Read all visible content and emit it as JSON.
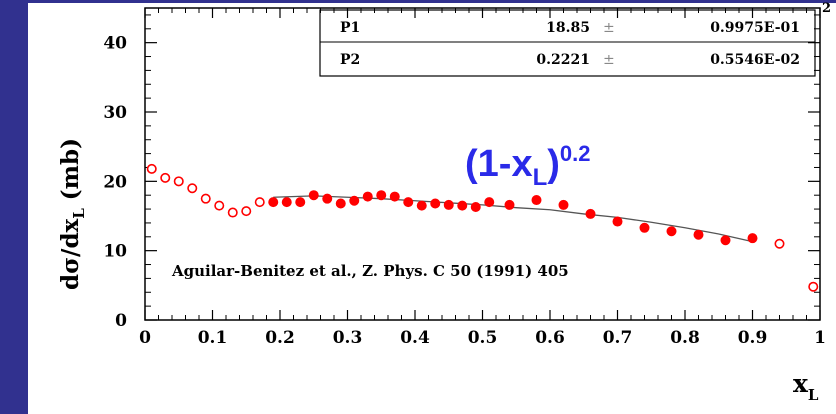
{
  "chart_data": {
    "type": "scatter",
    "xlabel_main": "x",
    "xlabel_sub": "L",
    "ylabel_main": "dσ/dx",
    "ylabel_sub": "L",
    "ylabel_unit": "(mb)",
    "xlim": [
      0,
      1
    ],
    "ylim": [
      0,
      45
    ],
    "x_ticks": [
      0,
      0.1,
      0.2,
      0.3,
      0.4,
      0.5,
      0.6,
      0.7,
      0.8,
      0.9,
      1
    ],
    "x_tick_labels": [
      "0",
      "0.1",
      "0.2",
      "0.3",
      "0.4",
      "0.5",
      "0.6",
      "0.7",
      "0.8",
      "0.9",
      "1"
    ],
    "y_ticks": [
      0,
      10,
      20,
      30,
      40
    ],
    "y_tick_labels": [
      "0",
      "10",
      "20",
      "30",
      "40"
    ],
    "grid": false,
    "series": [
      {
        "marker": "open-circle",
        "color": "#ff0000",
        "x": [
          0.01,
          0.03,
          0.05,
          0.07,
          0.09,
          0.11,
          0.13,
          0.15,
          0.17,
          0.94,
          0.99
        ],
        "y": [
          21.8,
          20.5,
          20.0,
          19.0,
          17.5,
          16.5,
          15.5,
          15.7,
          17.0,
          11.0,
          4.8
        ]
      },
      {
        "marker": "filled-circle",
        "color": "#ff0000",
        "x": [
          0.19,
          0.21,
          0.23,
          0.25,
          0.27,
          0.29,
          0.31,
          0.33,
          0.35,
          0.37,
          0.39,
          0.41,
          0.43,
          0.45,
          0.47,
          0.49,
          0.51,
          0.54,
          0.58,
          0.62,
          0.66,
          0.7,
          0.74,
          0.78,
          0.82,
          0.86,
          0.9
        ],
        "y": [
          17.0,
          17.0,
          17.0,
          18.0,
          17.5,
          16.8,
          17.2,
          17.8,
          18.0,
          17.8,
          17.0,
          16.5,
          16.8,
          16.6,
          16.5,
          16.3,
          17.0,
          16.6,
          17.3,
          16.6,
          15.3,
          14.2,
          13.3,
          12.8,
          12.3,
          11.5,
          11.8
        ]
      }
    ],
    "fit_curve": {
      "color": "#555555",
      "x": [
        0.19,
        0.25,
        0.3,
        0.35,
        0.4,
        0.45,
        0.5,
        0.55,
        0.6,
        0.65,
        0.7,
        0.75,
        0.8,
        0.85,
        0.9
      ],
      "y": [
        17.7,
        17.9,
        17.7,
        17.5,
        17.2,
        16.9,
        16.6,
        16.2,
        15.9,
        15.3,
        14.8,
        14.1,
        13.3,
        12.4,
        11.3
      ]
    },
    "stats_box": [
      {
        "name": "P1",
        "value": "18.85",
        "sep": "±",
        "error": "0.9975E-01"
      },
      {
        "name": "P2",
        "value": "0.2221",
        "sep": "±",
        "error": "0.5546E-02"
      }
    ],
    "fit_label_main": "(1-x",
    "fit_label_sub": "L",
    "fit_label_close": ")",
    "fit_label_exp": "0.2",
    "annotation": "Aguilar-Benitez et al., Z. Phys. C 50 (1991) 405",
    "corner_fragment": "2"
  }
}
